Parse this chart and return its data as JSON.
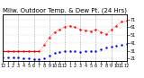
{
  "title": "Milw. Outdoor Temp. & Dew Pt. (24 Hrs)",
  "bg_color": "#ffffff",
  "grid_color": "#aaaaaa",
  "y_min": 18,
  "y_max": 78,
  "temp_x": [
    0,
    1,
    2,
    3,
    4,
    5,
    6,
    7,
    8,
    9,
    10,
    11,
    12,
    13,
    14,
    15,
    16,
    17,
    18,
    19,
    20,
    21,
    22,
    23,
    24
  ],
  "temp_y": [
    30,
    30,
    30,
    30,
    30,
    30,
    30,
    30,
    38,
    48,
    55,
    58,
    62,
    63,
    61,
    58,
    57,
    56,
    58,
    55,
    52,
    58,
    63,
    68,
    69
  ],
  "dew_x": [
    0,
    1,
    2,
    3,
    4,
    5,
    6,
    7,
    8,
    9,
    10,
    11,
    12,
    13,
    14,
    15,
    16,
    17,
    18,
    19,
    20,
    21,
    22,
    23,
    24
  ],
  "dew_y": [
    22,
    22,
    22,
    22,
    21,
    21,
    20,
    20,
    21,
    25,
    28,
    29,
    30,
    31,
    30,
    29,
    30,
    31,
    31,
    33,
    35,
    36,
    37,
    38,
    40
  ],
  "flat_line_x": [
    0,
    7
  ],
  "flat_line_y": [
    30,
    30
  ],
  "temp_color": "#ff0000",
  "dew_color": "#0000ff",
  "flat_color": "#ff0000",
  "title_fontsize": 5.0,
  "tick_fontsize": 3.5,
  "grid_x_positions": [
    0,
    3,
    6,
    9,
    12,
    15,
    18,
    21,
    24
  ],
  "hgrid_y": [
    21,
    31,
    41,
    51,
    61,
    71
  ],
  "ytick_labels": [
    "21",
    "31",
    "41",
    "51",
    "61",
    "71"
  ],
  "xtick_positions": [
    0,
    1,
    2,
    3,
    4,
    5,
    6,
    7,
    8,
    9,
    10,
    11,
    12,
    13,
    14,
    15,
    16,
    17,
    18,
    19,
    20,
    21,
    22,
    23,
    24
  ],
  "xtick_labels": [
    "12",
    "1",
    "2",
    "3",
    "4",
    "5",
    "6",
    "7",
    "8",
    "9",
    "10",
    "11",
    "12",
    "1",
    "2",
    "3",
    "4",
    "5",
    "6",
    "7",
    "8",
    "9",
    "10",
    "11",
    "12"
  ]
}
